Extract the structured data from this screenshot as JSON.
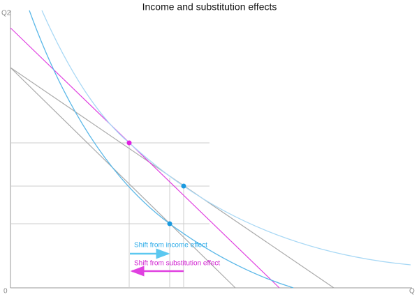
{
  "title": "Income and substitution effects",
  "axes": {
    "y_label": "Q2",
    "x_label": "Q",
    "origin": "0"
  },
  "annotations": {
    "income": "Shift from income effect",
    "substitution": "Shift from substitution effect"
  }
}
